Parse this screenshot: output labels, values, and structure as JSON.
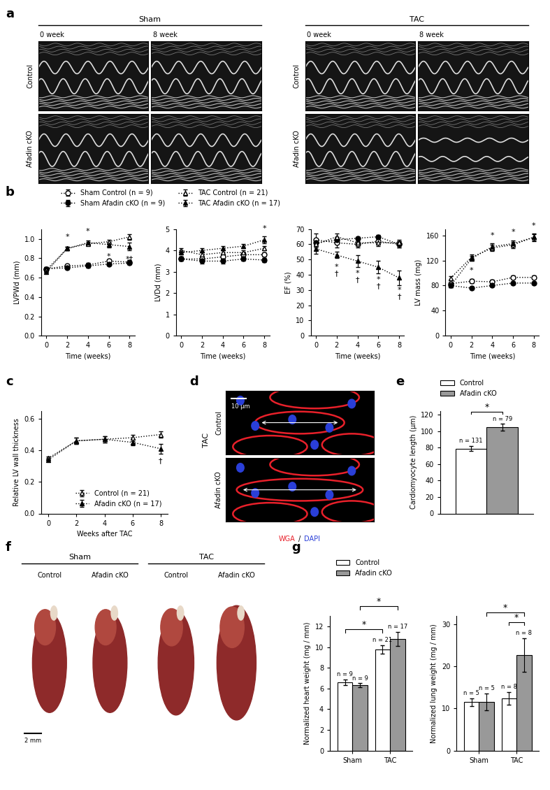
{
  "panel_labels": [
    "a",
    "b",
    "c",
    "d",
    "e",
    "f",
    "g"
  ],
  "panel_a": {
    "groups": [
      "Sham",
      "TAC"
    ],
    "columns": [
      "0 week",
      "8 week"
    ],
    "rows": [
      "Control",
      "Afadin cKO"
    ]
  },
  "panel_d": {
    "group": "TAC",
    "rows": [
      "Control",
      "Afadin cKO"
    ],
    "scale_bar": "10 μm",
    "stains": [
      {
        "text": "WGA",
        "color": "#e8202a"
      },
      {
        "text": "DAPI",
        "color": "#2a3fd8"
      }
    ],
    "stain_separator": "/"
  },
  "panel_f": {
    "groups": [
      "Sham",
      "TAC"
    ],
    "columns": [
      "Control",
      "Afadin cKO"
    ],
    "scale_bar": "2 mm"
  },
  "chart_data": [
    {
      "type": "line",
      "ylabel": "LVPWd (mm)",
      "xlabel": "Time (weeks)",
      "x": [
        0,
        2,
        4,
        6,
        8
      ],
      "xlim": [
        -0.5,
        8.5
      ],
      "xticks": [
        0,
        2,
        4,
        6,
        8
      ],
      "ylim": [
        0,
        1.1
      ],
      "yticks": [
        0.0,
        0.2,
        0.4,
        0.6,
        0.8,
        1.0
      ],
      "legend": "upper left",
      "series": [
        {
          "name": "Sham Control (n = 9)",
          "color": "#000000",
          "marker": "circle_open",
          "line_style": "dotted",
          "values": [
            0.69,
            0.72,
            0.73,
            0.77,
            0.76
          ],
          "errors": [
            0.02,
            0.02,
            0.02,
            0.02,
            0.02
          ]
        },
        {
          "name": "Sham Afadin cKO (n = 9)",
          "color": "#000000",
          "marker": "circle",
          "line_style": "dotted",
          "values": [
            0.69,
            0.7,
            0.72,
            0.74,
            0.75
          ],
          "errors": [
            0.02,
            0.01,
            0.02,
            0.01,
            0.01
          ]
        },
        {
          "name": "TAC Control (n = 21)",
          "color": "#000000",
          "marker": "triangle_open",
          "line_style": "dotted",
          "values": [
            0.68,
            0.9,
            0.95,
            0.97,
            1.02
          ],
          "errors": [
            0.02,
            0.02,
            0.02,
            0.02,
            0.03
          ]
        },
        {
          "name": "TAC Afadin cKO (n = 17)",
          "color": "#000000",
          "marker": "triangle",
          "line_style": "dotted",
          "values": [
            0.66,
            0.9,
            0.96,
            0.94,
            0.92
          ],
          "errors": [
            0.02,
            0.02,
            0.02,
            0.03,
            0.04
          ],
          "annotations": [
            null,
            "*",
            "*",
            "*",
            "*†"
          ]
        }
      ]
    },
    {
      "type": "line",
      "ylabel": "LVDd (mm)",
      "xlabel": "Time (weeks)",
      "x": [
        0,
        2,
        4,
        6,
        8
      ],
      "xlim": [
        -0.5,
        8.5
      ],
      "xticks": [
        0,
        2,
        4,
        6,
        8
      ],
      "ylim": [
        0,
        5
      ],
      "yticks": [
        0,
        1,
        2,
        3,
        4,
        5
      ],
      "series": [
        {
          "name": "Sham Control (n = 9)",
          "color": "#000000",
          "marker": "circle_open",
          "line_style": "dotted",
          "values": [
            3.6,
            3.6,
            3.7,
            3.8,
            3.8
          ],
          "errors": [
            0.1,
            0.1,
            0.1,
            0.1,
            0.1
          ]
        },
        {
          "name": "Sham Afadin cKO (n = 9)",
          "color": "#000000",
          "marker": "circle",
          "line_style": "dotted",
          "values": [
            3.6,
            3.5,
            3.5,
            3.6,
            3.55
          ],
          "errors": [
            0.1,
            0.1,
            0.1,
            0.1,
            0.1
          ]
        },
        {
          "name": "TAC Control (n = 21)",
          "color": "#000000",
          "marker": "triangle_open",
          "line_style": "dotted",
          "values": [
            4.0,
            3.8,
            3.9,
            3.9,
            4.1
          ],
          "errors": [
            0.1,
            0.1,
            0.1,
            0.1,
            0.1
          ]
        },
        {
          "name": "TAC Afadin cKO (n = 17)",
          "color": "#000000",
          "marker": "triangle",
          "line_style": "dotted",
          "values": [
            3.9,
            4.0,
            4.1,
            4.2,
            4.5
          ],
          "errors": [
            0.1,
            0.1,
            0.1,
            0.1,
            0.15
          ],
          "annotations": [
            null,
            null,
            null,
            null,
            "*"
          ]
        }
      ]
    },
    {
      "type": "line",
      "ylabel": "EF (%)",
      "xlabel": "Time (weeks)",
      "x": [
        0,
        2,
        4,
        6,
        8
      ],
      "xlim": [
        -0.5,
        8.5
      ],
      "xticks": [
        0,
        2,
        4,
        6,
        8
      ],
      "ylim": [
        0,
        70
      ],
      "yticks": [
        0,
        10,
        20,
        30,
        40,
        50,
        60,
        70
      ],
      "series": [
        {
          "name": "Sham Control (n = 9)",
          "color": "#000000",
          "marker": "circle_open",
          "line_style": "dotted",
          "values": [
            63,
            61,
            60,
            62,
            60
          ],
          "errors": [
            4,
            3,
            2,
            1,
            2
          ]
        },
        {
          "name": "Sham Afadin cKO (n = 9)",
          "color": "#000000",
          "marker": "circle",
          "line_style": "dotted",
          "values": [
            61,
            63,
            64,
            65,
            60
          ],
          "errors": [
            2,
            2,
            1,
            1,
            2
          ]
        },
        {
          "name": "TAC Control (n = 21)",
          "color": "#000000",
          "marker": "triangle_open",
          "line_style": "dotted",
          "values": [
            60,
            65,
            61,
            61,
            61
          ],
          "errors": [
            2,
            2,
            2,
            2,
            2
          ]
        },
        {
          "name": "TAC Afadin cKO (n = 17)",
          "color": "#000000",
          "marker": "triangle",
          "line_style": "dotted",
          "values": [
            57,
            53,
            49,
            45,
            38
          ],
          "errors": [
            3,
            2,
            4,
            4,
            5
          ],
          "annotations": [
            null,
            "*\n†",
            "*\n†",
            "*\n†",
            "*\n†"
          ]
        }
      ]
    },
    {
      "type": "line",
      "ylabel": "LV mass (mg)",
      "xlabel": "Time (weeks)",
      "x": [
        0,
        2,
        4,
        6,
        8
      ],
      "xlim": [
        -0.5,
        8.5
      ],
      "xticks": [
        0,
        2,
        4,
        6,
        8
      ],
      "ylim": [
        0,
        170
      ],
      "yticks": [
        0,
        40,
        80,
        120,
        160
      ],
      "series": [
        {
          "name": "Sham Control (n = 9)",
          "color": "#000000",
          "marker": "circle_open",
          "line_style": "dotted",
          "values": [
            83,
            87,
            86,
            93,
            93
          ],
          "errors": [
            3,
            3,
            3,
            3,
            3
          ]
        },
        {
          "name": "Sham Afadin cKO (n = 9)",
          "color": "#000000",
          "marker": "circle",
          "line_style": "dotted",
          "values": [
            80,
            76,
            80,
            84,
            84
          ],
          "errors": [
            3,
            2,
            2,
            2,
            2
          ]
        },
        {
          "name": "TAC Control (n = 21)",
          "color": "#000000",
          "marker": "triangle_open",
          "line_style": "dotted",
          "values": [
            92,
            125,
            140,
            145,
            157
          ],
          "errors": [
            3,
            4,
            5,
            5,
            5
          ]
        },
        {
          "name": "TAC Afadin cKO (n = 17)",
          "color": "#000000",
          "marker": "triangle",
          "line_style": "dotted",
          "values": [
            80,
            123,
            142,
            147,
            157
          ],
          "errors": [
            3,
            4,
            5,
            5,
            6
          ],
          "annotations": [
            null,
            "*",
            "*",
            "*",
            "*"
          ]
        }
      ]
    },
    {
      "type": "line",
      "ylabel": "Relative LV wall thickness",
      "xlabel": "Weeks after TAC",
      "x": [
        0,
        2,
        4,
        6,
        8
      ],
      "xlim": [
        -0.5,
        8.5
      ],
      "xticks": [
        0,
        2,
        4,
        6,
        8
      ],
      "ylim": [
        0,
        0.65
      ],
      "yticks": [
        0.0,
        0.2,
        0.4,
        0.6
      ],
      "legend": "lower right",
      "series": [
        {
          "name": "Control (n = 21)",
          "color": "#000000",
          "marker": "triangle_open",
          "line_style": "dotted",
          "values": [
            0.35,
            0.46,
            0.47,
            0.48,
            0.5
          ],
          "errors": [
            0.01,
            0.02,
            0.02,
            0.02,
            0.02
          ]
        },
        {
          "name": "Afadin cKO (n = 17)",
          "color": "#000000",
          "marker": "triangle",
          "line_style": "dotted",
          "values": [
            0.34,
            0.46,
            0.47,
            0.45,
            0.41
          ],
          "errors": [
            0.01,
            0.02,
            0.02,
            0.02,
            0.03
          ],
          "annotations": [
            null,
            null,
            null,
            null,
            "†"
          ]
        }
      ]
    },
    {
      "type": "bar",
      "ylabel": "Cardiomyocyte length (μm)",
      "categories": [
        null
      ],
      "tick_labels": "y",
      "ylim": [
        0,
        125
      ],
      "yticks": [
        0,
        20,
        40,
        60,
        80,
        100,
        120
      ],
      "legend": "upper left",
      "series": [
        {
          "name": "Control",
          "color": "#ffffff",
          "values": [
            79
          ],
          "errors": [
            3
          ],
          "n_labels": [
            "n = 131"
          ]
        },
        {
          "name": "Afadin cKO",
          "color": "#999999",
          "values": [
            105
          ],
          "errors": [
            4
          ],
          "n_labels": [
            "n = 79"
          ]
        }
      ],
      "significance": [
        {
          "from": [
            0,
            0
          ],
          "to": [
            0,
            1
          ],
          "text": "*"
        }
      ]
    },
    {
      "type": "bar",
      "ylabel": "Normalized heart weight (mg / mm)",
      "categories": [
        "Sham",
        "TAC"
      ],
      "ylim": [
        0,
        13
      ],
      "yticks": [
        0,
        2,
        4,
        6,
        8,
        10,
        12
      ],
      "legend": "upper left",
      "series": [
        {
          "name": "Control",
          "color": "#ffffff",
          "values": [
            6.6,
            9.8
          ],
          "errors": [
            0.3,
            0.4
          ],
          "n_labels": [
            "n = 9",
            "n = 21"
          ]
        },
        {
          "name": "Afadin cKO",
          "color": "#999999",
          "values": [
            6.3,
            10.8
          ],
          "errors": [
            0.2,
            0.7
          ],
          "n_labels": [
            "n = 9",
            "n = 17"
          ]
        }
      ],
      "significance": [
        {
          "from": [
            0,
            0
          ],
          "to": [
            1,
            0
          ],
          "text": "*"
        },
        {
          "from": [
            0,
            1
          ],
          "to": [
            1,
            1
          ],
          "text": "*"
        }
      ]
    },
    {
      "type": "bar",
      "ylabel": "Normalized lung weight (mg / mm)",
      "categories": [
        "Sham",
        "TAC"
      ],
      "ylim": [
        0,
        32
      ],
      "yticks": [
        0,
        10,
        20,
        30
      ],
      "series": [
        {
          "name": "Control",
          "color": "#ffffff",
          "values": [
            11.5,
            12.4
          ],
          "errors": [
            0.9,
            1.5
          ],
          "n_labels": [
            "n = 5",
            "n = 8"
          ]
        },
        {
          "name": "Afadin cKO",
          "color": "#999999",
          "values": [
            11.6,
            22.8
          ],
          "errors": [
            2.0,
            4.0
          ],
          "n_labels": [
            "n = 5",
            "n = 8"
          ]
        }
      ],
      "significance": [
        {
          "from": [
            1,
            0
          ],
          "to": [
            1,
            1
          ],
          "text": "*"
        },
        {
          "from": [
            0,
            1
          ],
          "to": [
            1,
            1
          ],
          "text": "*"
        }
      ]
    }
  ]
}
